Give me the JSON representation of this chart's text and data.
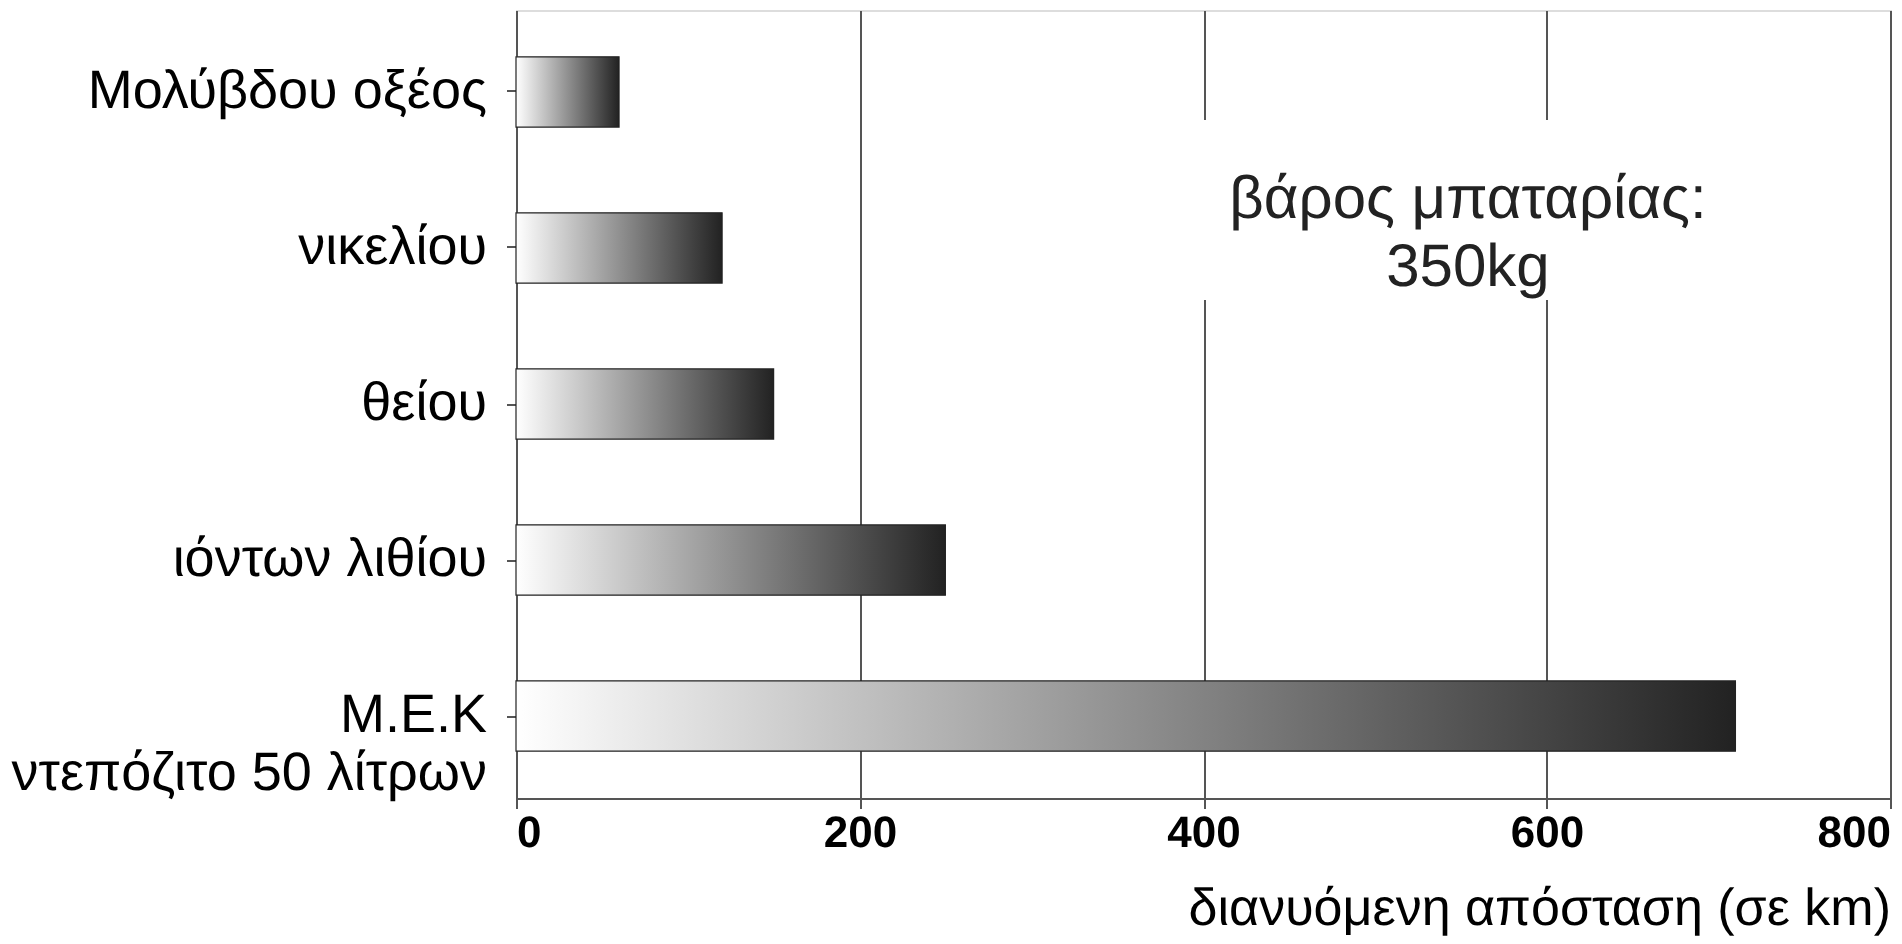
{
  "chart_data": {
    "type": "bar",
    "orientation": "horizontal",
    "xlabel": "διανυόμενη απόσταση (σε km)",
    "categories": [
      "Μολύβδου οξέος",
      "νικελίου",
      "θείου",
      "ιόντων λιθίου",
      "Μ.Ε.Κ\nντεπόζιτο 50 λίτρων"
    ],
    "values": [
      60,
      120,
      150,
      250,
      710
    ],
    "color": "#222222",
    "xlim": [
      0,
      800
    ],
    "xticks": [
      0,
      200,
      400,
      600,
      800
    ],
    "grid": "x",
    "annotations": [
      "βάρος μπαταρίας:\n350kg"
    ]
  }
}
